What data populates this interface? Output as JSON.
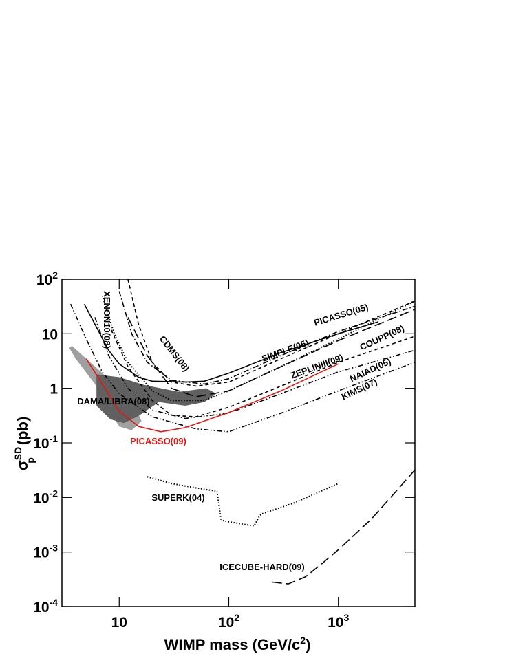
{
  "chart_data": {
    "type": "line",
    "x_label": {
      "text": "WIMP mass (GeV/c",
      "exponent": "2",
      "close": ")"
    },
    "y_label": {
      "symbol": "σ",
      "sub": "p",
      "sup": "SD",
      "unit": "(pb)"
    },
    "log_x": true,
    "log_y": true,
    "xlim": [
      3,
      5000
    ],
    "ylim": [
      0.0001,
      100
    ],
    "xticks": [
      10,
      {
        "value": 100,
        "label": "10",
        "exponent": "2"
      },
      {
        "value": 1000,
        "label": "10",
        "exponent": "3"
      }
    ],
    "yticks": [
      {
        "value": 0.0001,
        "label": "10",
        "exponent": "-4"
      },
      {
        "value": 0.001,
        "label": "10",
        "exponent": "-3"
      },
      {
        "value": 0.01,
        "label": "10",
        "exponent": "-2"
      },
      {
        "value": 0.1,
        "label": "10",
        "exponent": "-1"
      },
      1,
      10,
      {
        "value": 100,
        "label": "10",
        "exponent": "2"
      }
    ],
    "regions": [
      {
        "color": "#a0a0a0",
        "x": [
          3.5,
          4,
          6,
          8,
          10,
          13,
          16,
          14,
          11,
          8,
          5,
          3.7
        ],
        "y": [
          5.5,
          3.5,
          1.2,
          0.4,
          0.2,
          0.17,
          0.25,
          0.45,
          0.8,
          1.5,
          3.5,
          6
        ]
      },
      {
        "color": "#606060",
        "x": [
          6.2,
          10,
          17,
          35,
          62,
          77,
          60,
          40,
          23,
          15,
          11,
          8.3,
          6.2
        ],
        "y": [
          1.8,
          1.6,
          1.15,
          0.86,
          1.0,
          0.8,
          0.56,
          0.48,
          0.56,
          0.31,
          0.23,
          0.27,
          0.48
        ]
      }
    ],
    "region_label": "DAMA/LIBRA(08)",
    "series": [
      {
        "name": "PICASSO(05)",
        "color": "#000000",
        "dash": "solid",
        "x": [
          4.8,
          6,
          8,
          10,
          15,
          20,
          40,
          60,
          100,
          300,
          1000,
          2300
        ],
        "values": [
          35,
          15,
          5,
          2.8,
          1.6,
          1.35,
          1.3,
          1.35,
          1.9,
          4.5,
          10,
          16.5
        ]
      },
      {
        "name": "XENON10(08)",
        "color": "#000000",
        "dash": "dotted",
        "x": [
          7,
          9,
          12,
          20,
          30,
          60,
          100,
          300,
          1000,
          5000
        ],
        "values": [
          50,
          10,
          3,
          0.9,
          0.6,
          0.6,
          0.9,
          2.5,
          8,
          40
        ]
      },
      {
        "name": "CDMS(08)",
        "color": "#000000",
        "dash": "dashed",
        "x": [
          12,
          15,
          20,
          30,
          50,
          100,
          300,
          1000,
          5000
        ],
        "values": [
          100,
          15,
          3,
          1.3,
          1.1,
          1.3,
          3.5,
          10,
          40
        ]
      },
      {
        "name": "SIMPLE(05)",
        "color": "#000000",
        "dash": "dashdot",
        "x": [
          10,
          13,
          18,
          30,
          60,
          100,
          300,
          1000,
          5000
        ],
        "values": [
          60,
          10,
          3,
          1.4,
          1.2,
          1.5,
          4,
          11,
          32
        ]
      },
      {
        "name": "ZEPLINIII(09)",
        "color": "#000000",
        "dash": "longdash",
        "x": [
          12,
          18,
          30,
          50,
          100,
          300,
          1000,
          5000
        ],
        "values": [
          20,
          4,
          1,
          0.7,
          0.9,
          2.5,
          7.5,
          28
        ]
      },
      {
        "name": "COUPP(08)",
        "color": "#000000",
        "dash": "dashed",
        "x": [
          8,
          12,
          20,
          30,
          50,
          100,
          300,
          1000,
          5000
        ],
        "values": [
          15,
          2.5,
          0.6,
          0.32,
          0.3,
          0.45,
          1.1,
          3,
          9
        ]
      },
      {
        "name": "NAIAD(05)",
        "color": "#000000",
        "dash": "dashdotdot",
        "x": [
          6,
          8,
          12,
          20,
          40,
          100,
          300,
          1000,
          5000
        ],
        "values": [
          20,
          4,
          1,
          0.4,
          0.28,
          0.35,
          0.8,
          2,
          5
        ]
      },
      {
        "name": "KIMS(07)",
        "color": "#000000",
        "dash": "dashdotdot",
        "x": [
          3.6,
          5,
          7,
          10,
          20,
          50,
          100,
          300,
          1000,
          5000
        ],
        "values": [
          35,
          8,
          2,
          0.8,
          0.3,
          0.18,
          0.16,
          0.35,
          0.9,
          3
        ]
      },
      {
        "name": "PICASSO(09)",
        "color": "#e8130d",
        "dash": "solid",
        "x": [
          5,
          7,
          10,
          15,
          24,
          40,
          100,
          300,
          1000
        ],
        "values": [
          3.5,
          1.2,
          0.38,
          0.2,
          0.16,
          0.19,
          0.36,
          0.9,
          2.8
        ]
      },
      {
        "name": "SUPERK(04)",
        "color": "#000000",
        "dash": "dotted",
        "x": [
          18,
          30,
          50,
          78,
          85,
          90,
          170,
          190,
          200,
          400,
          1000
        ],
        "values": [
          0.024,
          0.018,
          0.015,
          0.013,
          0.004,
          0.0037,
          0.003,
          0.0045,
          0.005,
          0.008,
          0.018
        ]
      },
      {
        "name": "ICECUBE-HARD(09)",
        "color": "#000000",
        "dash": "longdash",
        "x": [
          250,
          350,
          500,
          700,
          1000,
          2000,
          3000,
          5000
        ],
        "values": [
          0.00028,
          0.00026,
          0.00035,
          0.0006,
          0.0011,
          0.004,
          0.01,
          0.032
        ]
      }
    ]
  }
}
